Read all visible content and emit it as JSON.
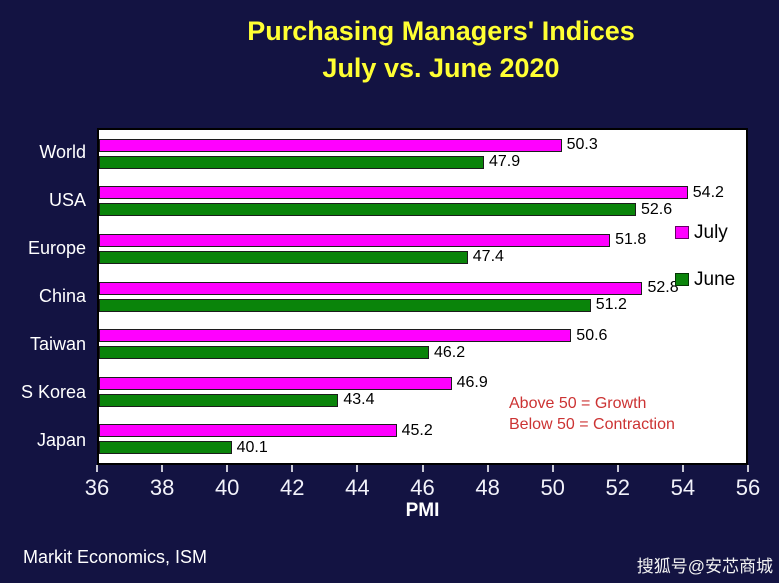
{
  "title": {
    "line1": "Purchasing Managers' Indices",
    "line2": "July vs. June 2020",
    "color": "#ffff33"
  },
  "chart_data": {
    "type": "bar",
    "orientation": "horizontal",
    "title": "Purchasing Managers' Indices July vs. June 2020",
    "categories": [
      "World",
      "USA",
      "Europe",
      "China",
      "Taiwan",
      "S Korea",
      "Japan"
    ],
    "series": [
      {
        "name": "July",
        "color": "#ff00ff",
        "values": [
          50.3,
          54.2,
          51.8,
          52.8,
          50.6,
          46.9,
          45.2
        ]
      },
      {
        "name": "June",
        "color": "#0a840a",
        "values": [
          47.9,
          52.6,
          47.4,
          51.2,
          46.2,
          43.4,
          40.1
        ]
      }
    ],
    "xlabel": "PMI",
    "xlim": [
      36,
      56
    ],
    "x_ticks": [
      36,
      38,
      40,
      42,
      44,
      46,
      48,
      50,
      52,
      54,
      56
    ],
    "grid": false,
    "legend_position": "inside-top-right",
    "plot_background": "#ffffff",
    "annotation": {
      "line1": "Above 50 = Growth",
      "line2": "Below 50 = Contraction",
      "color": "#cc3333"
    }
  },
  "footer": {
    "source": "Markit Economics, ISM",
    "watermark": "搜狐号@安芯商城"
  }
}
